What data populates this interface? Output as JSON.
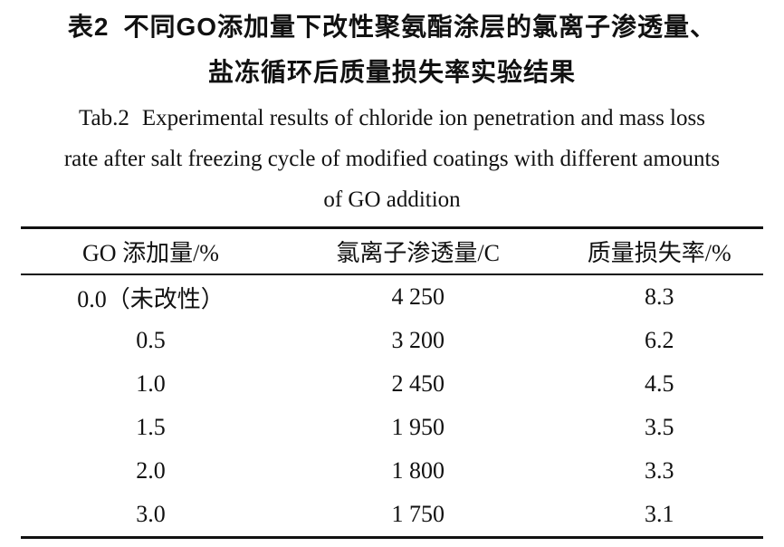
{
  "title_cn": {
    "label": "表2",
    "line1": "不同GO添加量下改性聚氨酯涂层的氯离子渗透量、",
    "line2": "盐冻循环后质量损失率实验结果"
  },
  "title_en": {
    "label": "Tab.2",
    "line1": "Experimental results of chloride ion penetration and mass loss",
    "line2": "rate after salt freezing cycle of modified coatings with different amounts",
    "line3": "of GO addition"
  },
  "table": {
    "headers": [
      "GO 添加量/%",
      "氯离子渗透量/C",
      "质量损失率/%"
    ],
    "rows": [
      [
        "0.0（未改性）",
        "4 250",
        "8.3"
      ],
      [
        "0.5",
        "3 200",
        "6.2"
      ],
      [
        "1.0",
        "2 450",
        "4.5"
      ],
      [
        "1.5",
        "1 950",
        "3.5"
      ],
      [
        "2.0",
        "1 800",
        "3.3"
      ],
      [
        "3.0",
        "1 750",
        "3.1"
      ]
    ]
  },
  "chart_data": {
    "type": "table",
    "title": "表2 不同GO添加量下改性聚氨酯涂层的氯离子渗透量、盐冻循环后质量损失率实验结果",
    "subtitle": "Tab.2 Experimental results of chloride ion penetration and mass loss rate after salt freezing cycle of modified coatings with different amounts of GO addition",
    "columns": [
      "GO 添加量/%",
      "氯离子渗透量/C",
      "质量损失率/%"
    ],
    "categories": [
      "0.0（未改性）",
      "0.5",
      "1.0",
      "1.5",
      "2.0",
      "3.0"
    ],
    "series": [
      {
        "name": "氯离子渗透量/C",
        "values": [
          4250,
          3200,
          2450,
          1950,
          1800,
          1750
        ]
      },
      {
        "name": "质量损失率/%",
        "values": [
          8.3,
          6.2,
          4.5,
          3.5,
          3.3,
          3.1
        ]
      }
    ]
  },
  "colors": {
    "text": "#111111",
    "border": "#111111",
    "background": "#ffffff"
  }
}
